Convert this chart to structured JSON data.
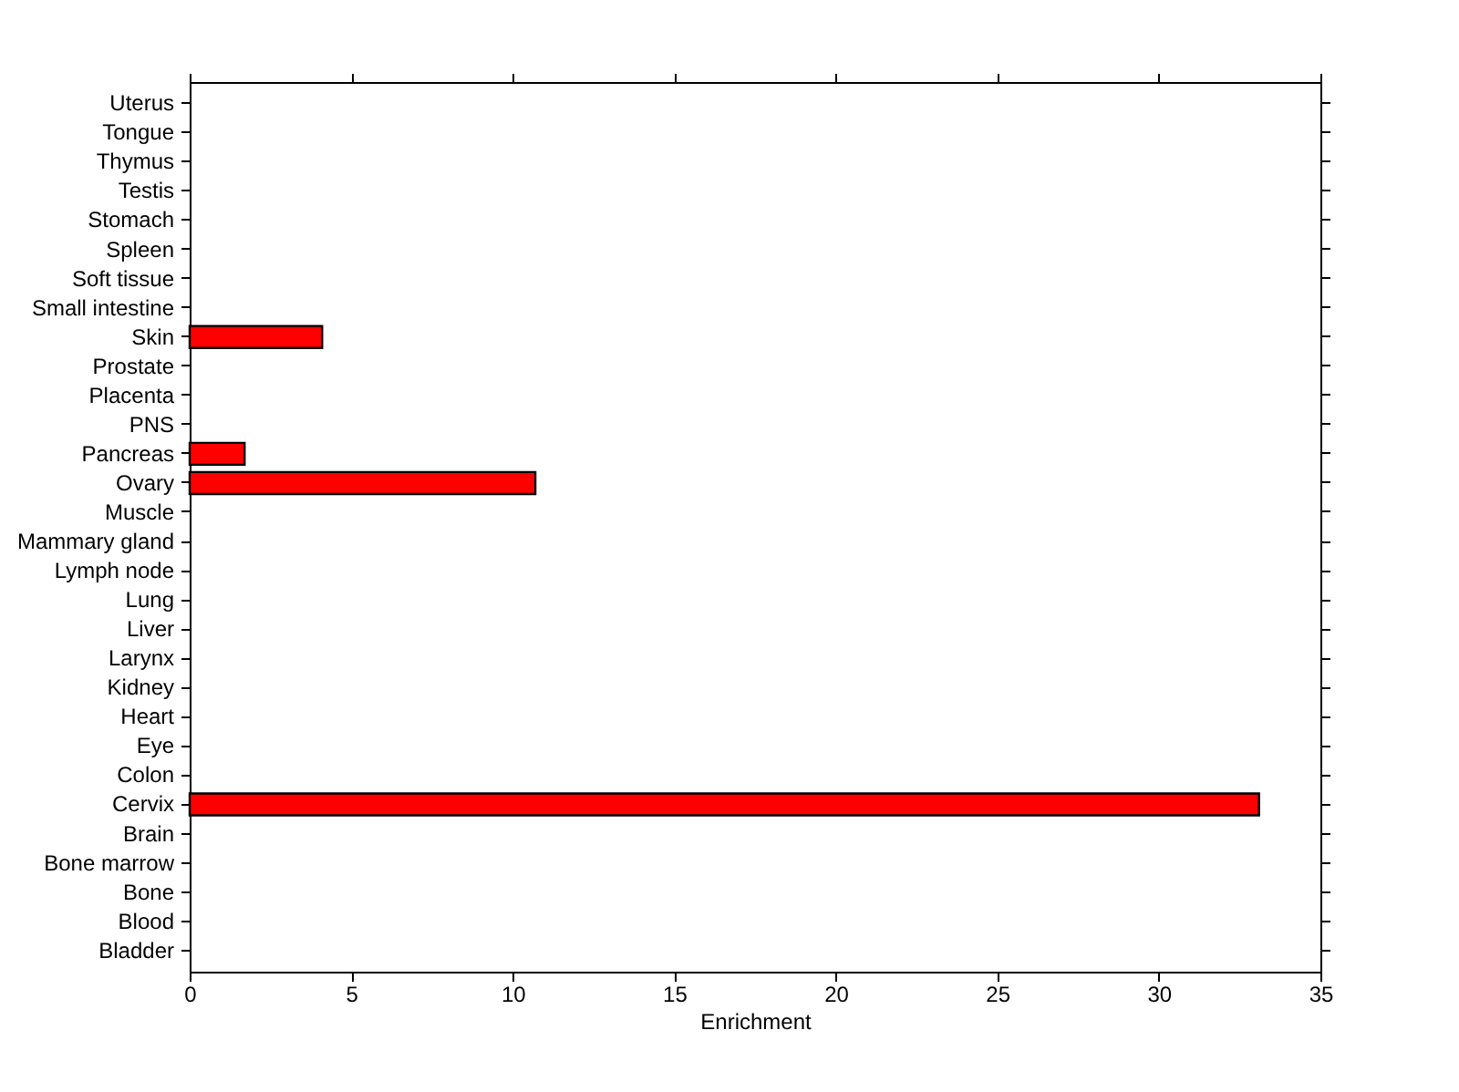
{
  "chart_data": {
    "type": "bar",
    "orientation": "horizontal",
    "xlabel": "Enrichment",
    "categories": [
      "Uterus",
      "Tongue",
      "Thymus",
      "Testis",
      "Stomach",
      "Spleen",
      "Soft tissue",
      "Small intestine",
      "Skin",
      "Prostate",
      "Placenta",
      "PNS",
      "Pancreas",
      "Ovary",
      "Muscle",
      "Mammary gland",
      "Lymph node",
      "Lung",
      "Liver",
      "Larynx",
      "Kidney",
      "Heart",
      "Eye",
      "Colon",
      "Cervix",
      "Brain",
      "Bone marrow",
      "Bone",
      "Blood",
      "Bladder"
    ],
    "values": [
      0,
      0,
      0,
      0,
      0,
      0,
      0,
      0,
      4.1,
      0,
      0,
      0,
      1.7,
      10.7,
      0,
      0,
      0,
      0,
      0,
      0,
      0,
      0,
      0,
      0,
      33.1,
      0,
      0,
      0,
      0,
      0
    ],
    "color": "#ff0000",
    "xlim": [
      0,
      35
    ],
    "xticks": [
      0,
      5,
      10,
      15,
      20,
      25,
      30,
      35
    ],
    "grid": false
  }
}
